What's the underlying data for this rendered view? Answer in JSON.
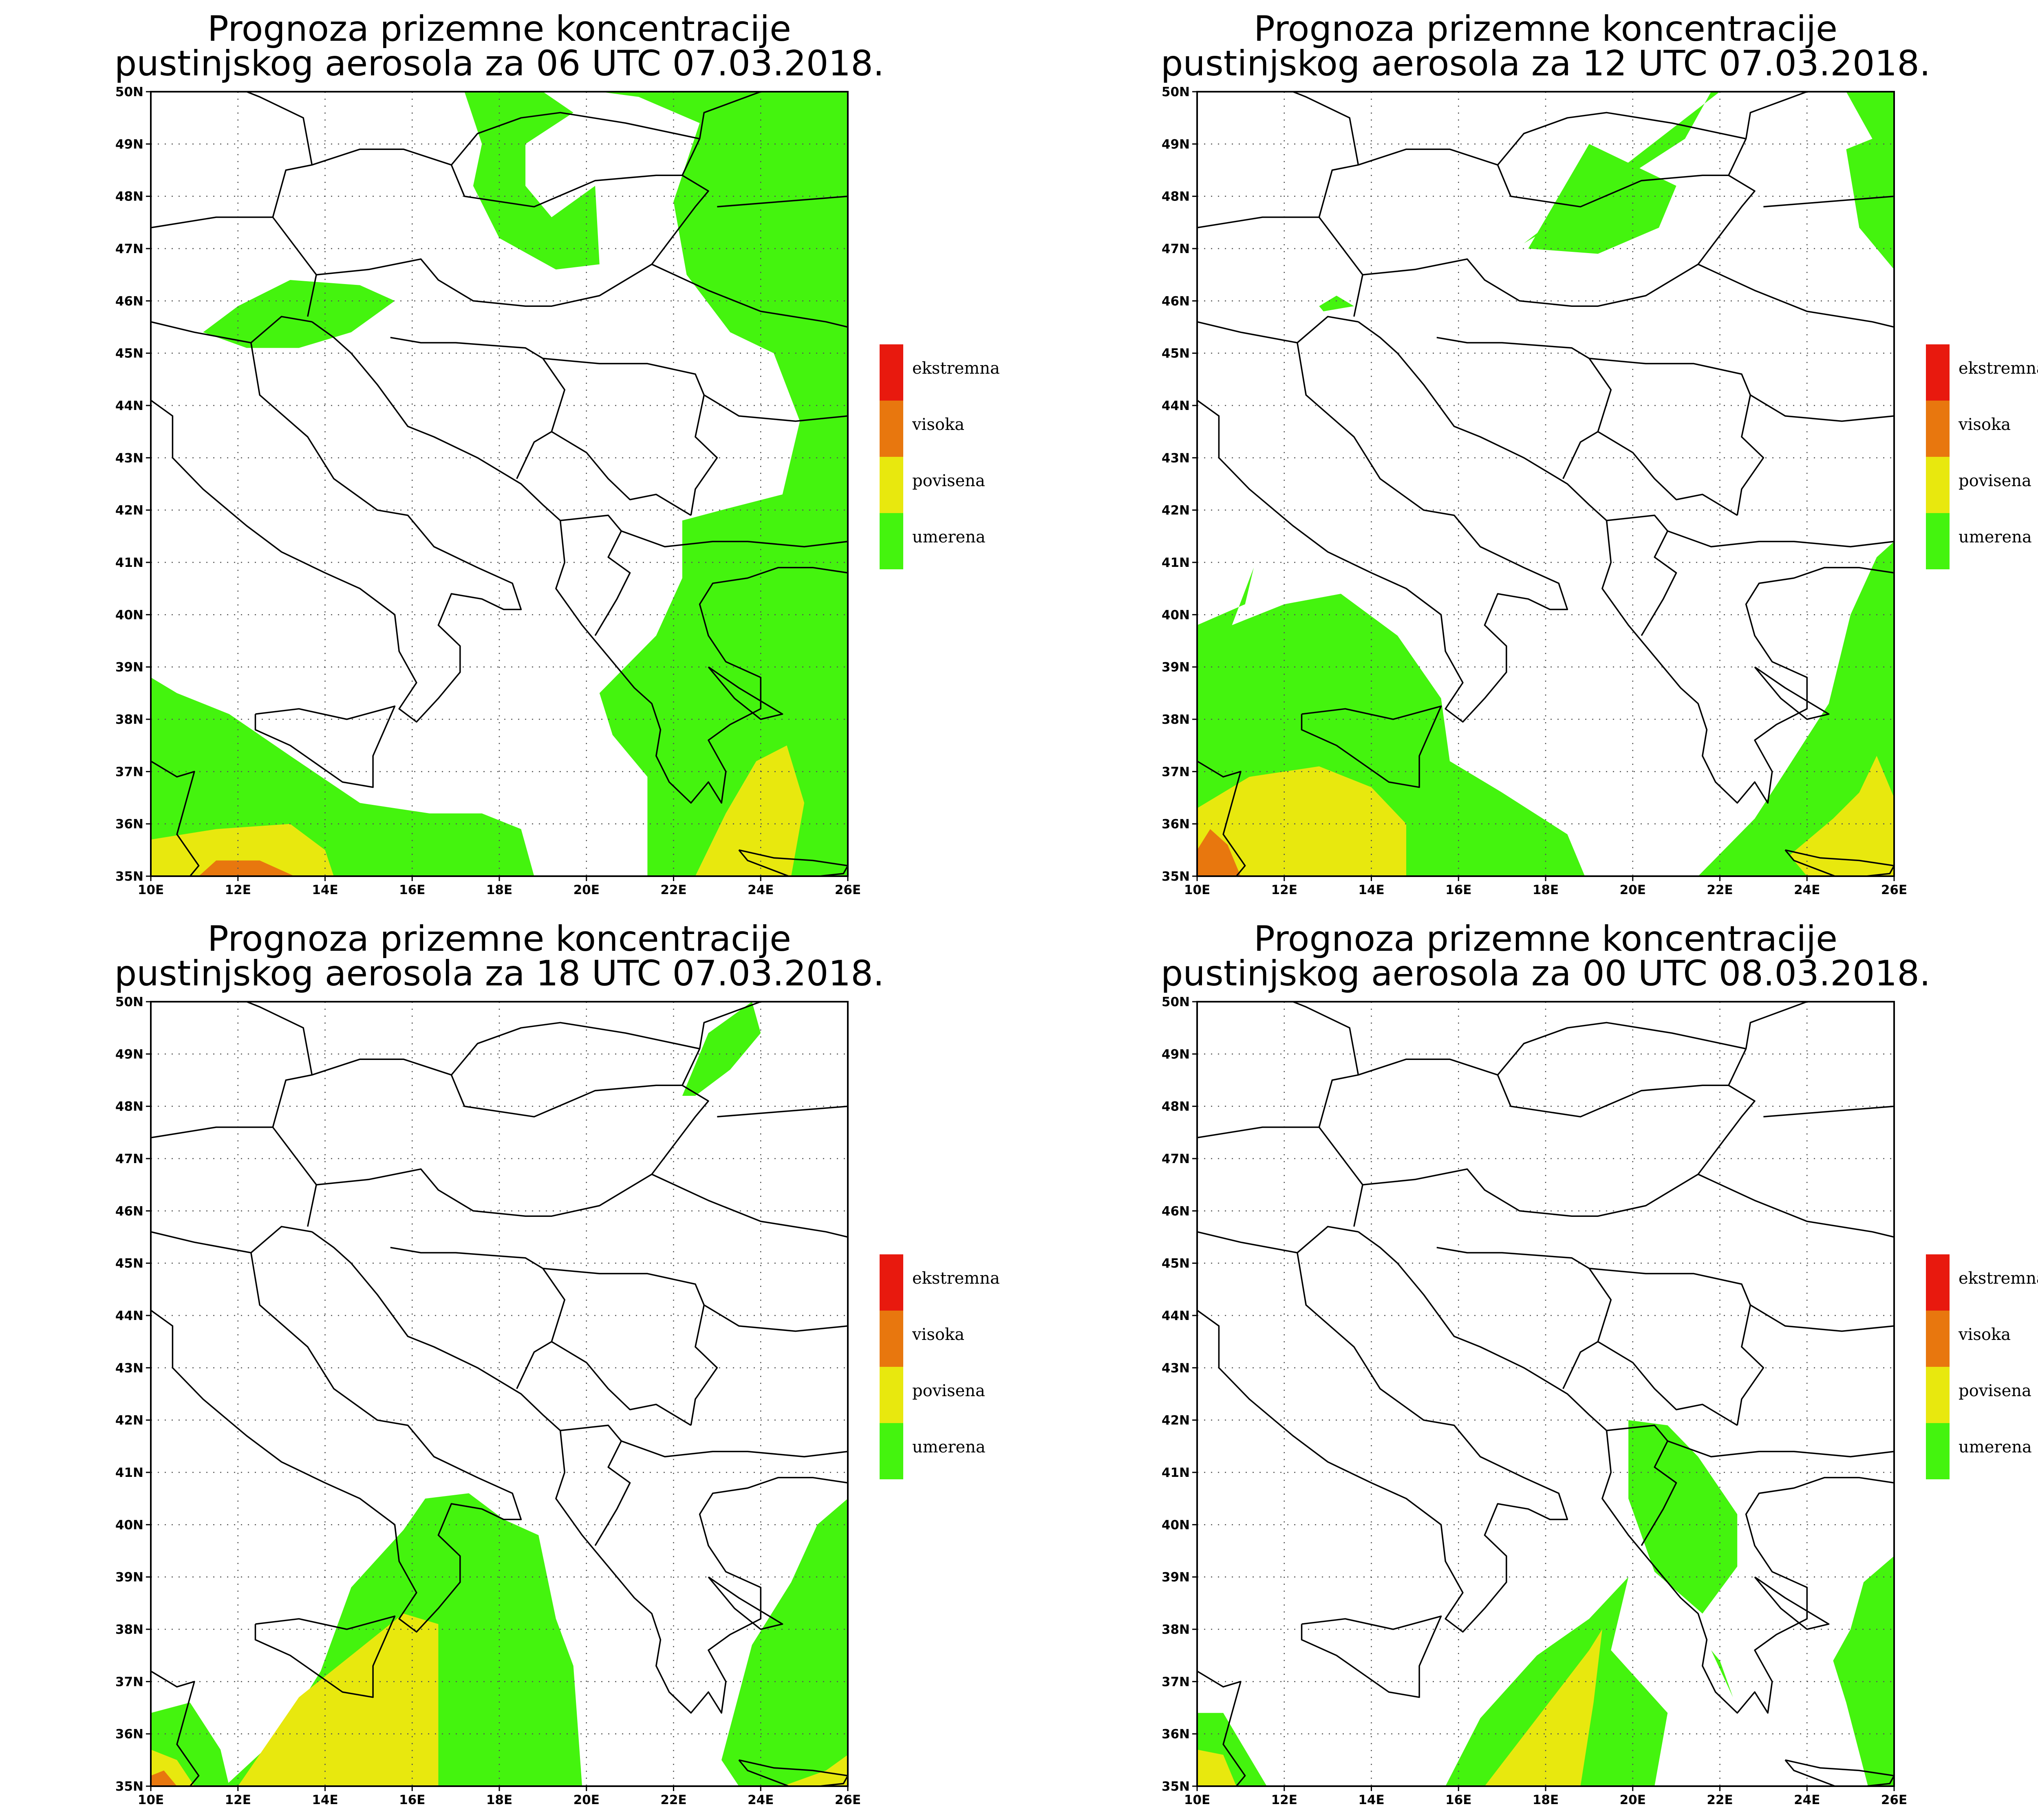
{
  "panels": [
    {
      "title_line1": "Prognoza prizemne koncentracije",
      "title_line2": "pustinjskog aerosola za 06 UTC 07.03.2018."
    },
    {
      "title_line1": "Prognoza prizemne koncentracije",
      "title_line2": "pustinjskog aerosola za 12 UTC 07.03.2018."
    },
    {
      "title_line1": "Prognoza prizemne koncentracije",
      "title_line2": "pustinjskog aerosola za 18 UTC 07.03.2018."
    },
    {
      "title_line1": "Prognoza prizemne koncentracije",
      "title_line2": "pustinjskog aerosola za 00 UTC 08.03.2018."
    }
  ],
  "lat_labels": [
    "50N",
    "49N",
    "48N",
    "47N",
    "46N",
    "45N",
    "44N",
    "43N",
    "42N",
    "41N",
    "40N",
    "39N",
    "38N",
    "37N",
    "36N",
    "35N"
  ],
  "lon_labels": [
    "10E",
    "12E",
    "14E",
    "16E",
    "18E",
    "20E",
    "22E",
    "24E",
    "26E"
  ],
  "legend": [
    {
      "label": "ekstremna",
      "color": "#e8190e"
    },
    {
      "label": "visoka",
      "color": "#e8770e"
    },
    {
      "label": "povisena",
      "color": "#e8e80e"
    },
    {
      "label": "umerena",
      "color": "#44f40e"
    }
  ],
  "colors": {
    "umerena": "#44f40e",
    "povisena": "#e8e80e",
    "visoka": "#e8770e",
    "ekstremna": "#e8190e"
  }
}
